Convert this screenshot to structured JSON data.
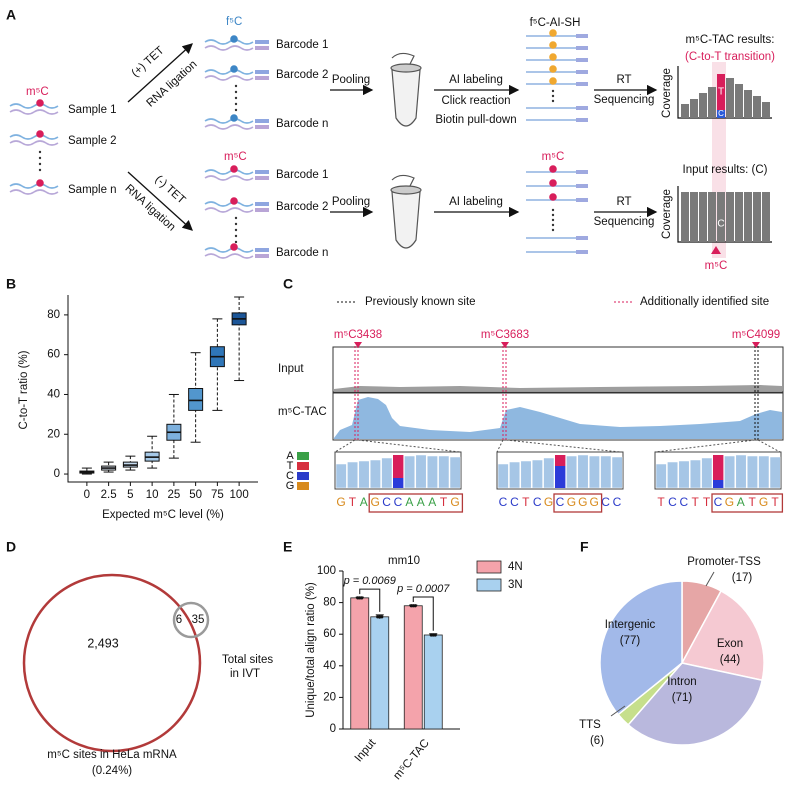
{
  "panel_labels": [
    "A",
    "B",
    "C",
    "D",
    "E",
    "F"
  ],
  "panel_a": {
    "input_mark": "m⁵C",
    "samples": [
      "Sample 1",
      "Sample 2",
      "Sample n"
    ],
    "top_branch": {
      "treatment": "(+) TET",
      "ligation": "RNA ligation",
      "mark": "f⁵C",
      "barcodes": [
        "Barcode 1",
        "Barcode 2",
        "Barcode n"
      ],
      "pooling": "Pooling",
      "steps": [
        "AI labeling",
        "Click reaction",
        "Biotin pull-down"
      ],
      "product": "f⁵C-AI-SH",
      "sequencing": [
        "RT",
        "Sequencing"
      ],
      "result_title": "m⁵C-TAC results:",
      "result_subtitle": "(C-to-T transition)",
      "axis_label": "Coverage",
      "bases": [
        "T",
        "C"
      ]
    },
    "bottom_branch": {
      "treatment": "(-) TET",
      "ligation": "RNA ligation",
      "mark": "m⁵C",
      "barcodes": [
        "Barcode 1",
        "Barcode 2",
        "Barcode n"
      ],
      "pooling": "Pooling",
      "steps": [
        "AI labeling"
      ],
      "product": "m⁵C",
      "sequencing": [
        "RT",
        "Sequencing"
      ],
      "result_title": "Input results: (C)",
      "axis_label": "Coverage",
      "bases": [
        "C"
      ],
      "site": "m⁵C"
    }
  },
  "chart_data": [
    {
      "type": "box",
      "xlabel": "Expected m⁵C level (%)",
      "ylabel": "C-to-T ratio (%)",
      "categories": [
        "0",
        "2.5",
        "5",
        "10",
        "25",
        "50",
        "75",
        "100"
      ],
      "min": [
        0,
        1,
        2,
        3,
        8,
        16,
        32,
        47
      ],
      "q1": [
        0.5,
        2,
        3.5,
        6.5,
        17,
        32,
        54,
        75
      ],
      "median": [
        1,
        3,
        4.5,
        8.5,
        21,
        37,
        59,
        78
      ],
      "q3": [
        1.5,
        4,
        6,
        11,
        25,
        43,
        64,
        81
      ],
      "max": [
        3,
        6,
        9,
        19,
        40,
        61,
        78,
        89
      ],
      "colors": [
        "#f3f7fb",
        "#e2ecf7",
        "#c7dcf0",
        "#a6c9e8",
        "#7db0dd",
        "#5296cd",
        "#2f76b8",
        "#1c5698"
      ],
      "ylim": [
        -4,
        90
      ],
      "yticks": [
        0,
        20,
        40,
        60,
        80
      ]
    },
    {
      "type": "bar",
      "title": "mm10",
      "ylabel": "Unique/total align ratio (%)",
      "categories": [
        "Input",
        "m⁵C-TAC"
      ],
      "series": [
        {
          "name": "4N",
          "color": "#f4a3ab",
          "values": [
            83,
            78
          ],
          "errors": [
            0.5,
            0.5
          ]
        },
        {
          "name": "3N",
          "color": "#a9d1ef",
          "values": [
            71,
            59.5
          ],
          "errors": [
            1.2,
            0.8
          ]
        }
      ],
      "annotations": [
        "p = 0.0069",
        "p = 0.0007"
      ],
      "ylim": [
        0,
        100
      ],
      "yticks": [
        0,
        20,
        40,
        60,
        80,
        100
      ]
    },
    {
      "type": "pie",
      "categories": [
        "Promoter-TSS",
        "Exon",
        "Intron",
        "TTS",
        "Intergenic"
      ],
      "values": [
        17,
        44,
        71,
        6,
        77
      ],
      "value_labels": [
        "(17)",
        "(44)",
        "(71)",
        "(6)",
        "(77)"
      ],
      "colors": [
        "#e6a6a6",
        "#f5c9d2",
        "#b9b8dd",
        "#c6df8c",
        "#a2b9e9"
      ]
    }
  ],
  "panel_c": {
    "legend": [
      "Previously known site",
      "Additionally identified site"
    ],
    "sites": [
      "m⁵C3438",
      "m⁵C3683",
      "m⁵C4099"
    ],
    "tracks": [
      "Input",
      "m⁵C-TAC"
    ],
    "bases": [
      "A",
      "T",
      "C",
      "G"
    ],
    "base_colors": [
      "#3aa047",
      "#d62f3f",
      "#2b3bc9",
      "#d88a1c"
    ],
    "sequences": [
      [
        "G",
        "T",
        "A",
        "G",
        "C",
        "C",
        "A",
        "A",
        "A",
        "T",
        "G"
      ],
      [
        "C",
        "C",
        "T",
        "C",
        "G",
        "C",
        "G",
        "G",
        "G",
        "C",
        "C"
      ],
      [
        "T",
        "C",
        "C",
        "T",
        "T",
        "C",
        "G",
        "A",
        "T",
        "G",
        "T"
      ]
    ]
  },
  "panel_d": {
    "main_count": "2,493",
    "overlap_count": "6",
    "ivt_count": "35",
    "ivt_label": [
      "Total sites",
      "in IVT"
    ],
    "main_label": [
      "m⁵C sites in HeLa mRNA",
      "(0.24%)"
    ]
  }
}
